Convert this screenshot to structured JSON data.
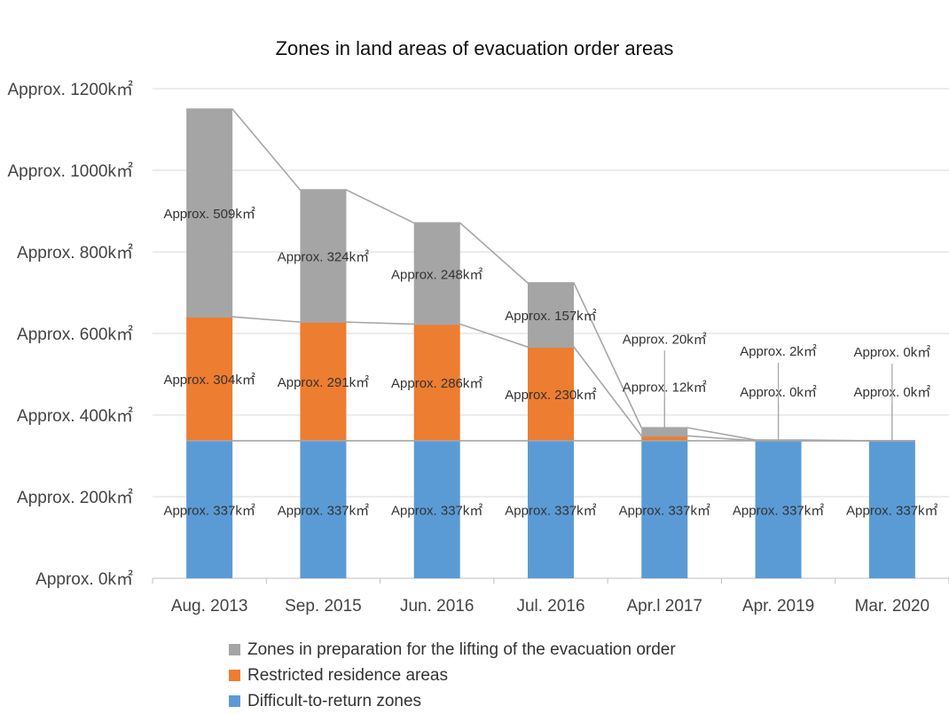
{
  "chart_data": {
    "type": "bar",
    "stacked": true,
    "title": "Zones in land areas of evacuation order areas",
    "categories": [
      "Aug. 2013",
      "Sep. 2015",
      "Jun. 2016",
      "Jul. 2016",
      "Apr.l 2017",
      "Apr. 2019",
      "Mar. 2020"
    ],
    "series": [
      {
        "name": "Difficult-to-return zones",
        "color": "#5b9bd5",
        "values": [
          337,
          337,
          337,
          337,
          337,
          337,
          337
        ],
        "labels": [
          "Approx. 337k㎡",
          "Approx. 337k㎡",
          "Approx. 337k㎡",
          "Approx. 337k㎡",
          "Approx. 337k㎡",
          "Approx. 337k㎡",
          "Approx. 337k㎡"
        ]
      },
      {
        "name": "Restricted residence areas",
        "color": "#ed7d31",
        "values": [
          304,
          291,
          286,
          230,
          12,
          0,
          0
        ],
        "labels": [
          "Approx. 304k㎡",
          "Approx. 291k㎡",
          "Approx. 286k㎡",
          "Approx. 230k㎡",
          "Approx. 12k㎡",
          "Approx. 0k㎡",
          "Approx. 0k㎡"
        ]
      },
      {
        "name": "Zones in preparation for the lifting of the evacuation order",
        "color": "#a5a5a5",
        "values": [
          509,
          324,
          248,
          157,
          20,
          2,
          0
        ],
        "labels": [
          "Approx. 509k㎡",
          "Approx. 324k㎡",
          "Approx. 248k㎡",
          "Approx. 157k㎡",
          "Approx. 20k㎡",
          "Approx. 2k㎡",
          "Approx. 0k㎡"
        ]
      }
    ],
    "ylim": [
      0,
      1200
    ],
    "yticks": [
      0,
      200,
      400,
      600,
      800,
      1000,
      1200
    ],
    "ytick_labels": [
      "Approx. 0k㎡",
      "Approx. 200k㎡",
      "Approx. 400k㎡",
      "Approx. 600k㎡",
      "Approx. 800k㎡",
      "Approx. 1000k㎡",
      "Approx. 1200k㎡"
    ],
    "grid": true,
    "legend_position": "bottom",
    "series_lines": true
  }
}
